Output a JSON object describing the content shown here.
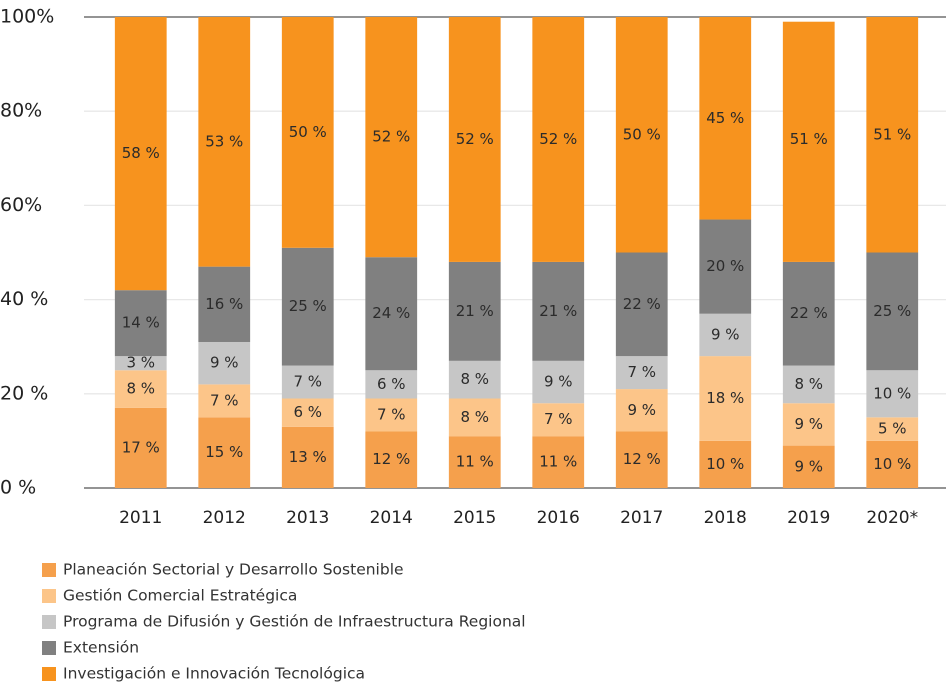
{
  "chart_data": {
    "type": "stacked_bar",
    "categories": [
      "2011",
      "2012",
      "2013",
      "2014",
      "2015",
      "2016",
      "2017",
      "2018",
      "2019",
      "2020*"
    ],
    "ylim": [
      0,
      100
    ],
    "yticks": [
      {
        "value": 0,
        "label": "0 %"
      },
      {
        "value": 20,
        "label": "20 %"
      },
      {
        "value": 40,
        "label": "40 %"
      },
      {
        "value": 60,
        "label": "60%"
      },
      {
        "value": 80,
        "label": "80%"
      },
      {
        "value": 100,
        "label": "100%"
      }
    ],
    "series": [
      {
        "name": "Planeación Sectorial y Desarrollo Sostenible",
        "color": "#f5a04c",
        "values": [
          17,
          15,
          13,
          12,
          11,
          11,
          12,
          10,
          9,
          10
        ],
        "value_labels": [
          "17 %",
          "15 %",
          "13 %",
          "12 %",
          "11 %",
          "11 %",
          "12 %",
          "10 %",
          "9 %",
          "10 %"
        ]
      },
      {
        "name": "Gestión Comercial Estratégica",
        "color": "#fcc589",
        "values": [
          8,
          7,
          6,
          7,
          8,
          7,
          9,
          18,
          9,
          5
        ],
        "value_labels": [
          "8 %",
          "7 %",
          "6 %",
          "7 %",
          "8 %",
          "7 %",
          "9 %",
          "18 %",
          "9 %",
          "5 %"
        ]
      },
      {
        "name": "Programa de Difusión y Gestión de Infraestructura Regional",
        "color": "#c6c6c6",
        "values": [
          3,
          9,
          7,
          6,
          8,
          9,
          7,
          9,
          8,
          10
        ],
        "value_labels": [
          "3 %",
          "9 %",
          "7 %",
          "6 %",
          "8 %",
          "9 %",
          "7 %",
          "9 %",
          "8 %",
          "10 %"
        ]
      },
      {
        "name": "Extensión",
        "color": "#808080",
        "values": [
          14,
          16,
          25,
          24,
          21,
          21,
          22,
          20,
          22,
          25
        ],
        "value_labels": [
          "14 %",
          "16 %",
          "25 %",
          "24 %",
          "21 %",
          "21 %",
          "22 %",
          "20 %",
          "22 %",
          "25 %"
        ]
      },
      {
        "name": "Investigación e Innovación Tecnológica",
        "color": "#f7931e",
        "values": [
          58,
          53,
          50,
          52,
          52,
          52,
          50,
          45,
          51,
          51
        ],
        "value_labels": [
          "58 %",
          "53 %",
          "50 %",
          "52 %",
          "52 %",
          "52 %",
          "50 %",
          "45 %",
          "51 %",
          "51 %"
        ]
      }
    ],
    "grid": true
  }
}
